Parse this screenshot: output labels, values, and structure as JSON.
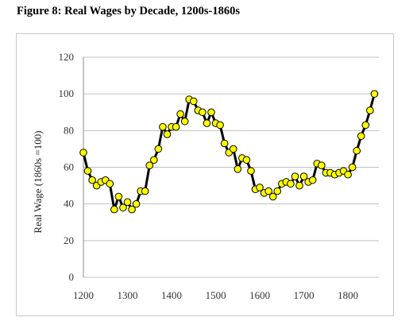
{
  "figure": {
    "title": "Figure 8: Real Wages by Decade, 1200s-1860s"
  },
  "chart_data": {
    "type": "line",
    "title": "Figure 8: Real Wages by Decade, 1200s-1860s",
    "xlabel": "",
    "ylabel": "Real Wage (1860s =100)",
    "xlim": [
      1200,
      1870
    ],
    "ylim": [
      0,
      120
    ],
    "xticks": [
      1200,
      1300,
      1400,
      1500,
      1600,
      1700,
      1800
    ],
    "yticks": [
      0,
      20,
      40,
      60,
      80,
      100,
      120
    ],
    "grid": "horizontal",
    "legend": "none",
    "colors": {
      "line": "#000000",
      "marker_fill": "#ffff00",
      "marker_stroke": "#000000",
      "grid": "#bfbfbf"
    },
    "series": [
      {
        "x": [
          1200,
          1210,
          1220,
          1230,
          1240,
          1250,
          1260,
          1270,
          1280,
          1290,
          1300,
          1310,
          1320,
          1330,
          1340,
          1350,
          1360,
          1370,
          1380,
          1390,
          1400,
          1410,
          1420,
          1430,
          1440,
          1450,
          1460,
          1470,
          1480,
          1490,
          1500,
          1510,
          1520,
          1530,
          1540,
          1550,
          1560,
          1570,
          1580,
          1590,
          1600,
          1610,
          1620,
          1630,
          1640,
          1650,
          1660,
          1670,
          1680,
          1690,
          1700,
          1710,
          1720,
          1730,
          1740,
          1750,
          1760,
          1770,
          1780,
          1790,
          1800,
          1810,
          1820,
          1830,
          1840,
          1850,
          1860
        ],
        "values": [
          68,
          58,
          53,
          50,
          52,
          53,
          51,
          37,
          44,
          38,
          41,
          37,
          40,
          47,
          47,
          61,
          64,
          70,
          82,
          78,
          82,
          82,
          89,
          85,
          97,
          96,
          91,
          90,
          84,
          90,
          84,
          83,
          73,
          68,
          70,
          59,
          65,
          64,
          58,
          48,
          49,
          46,
          47,
          44,
          47,
          51,
          52,
          51,
          55,
          50,
          55,
          52,
          53,
          62,
          61,
          57,
          57,
          56,
          57,
          58,
          56,
          60,
          69,
          77,
          83,
          91,
          100
        ]
      }
    ]
  }
}
